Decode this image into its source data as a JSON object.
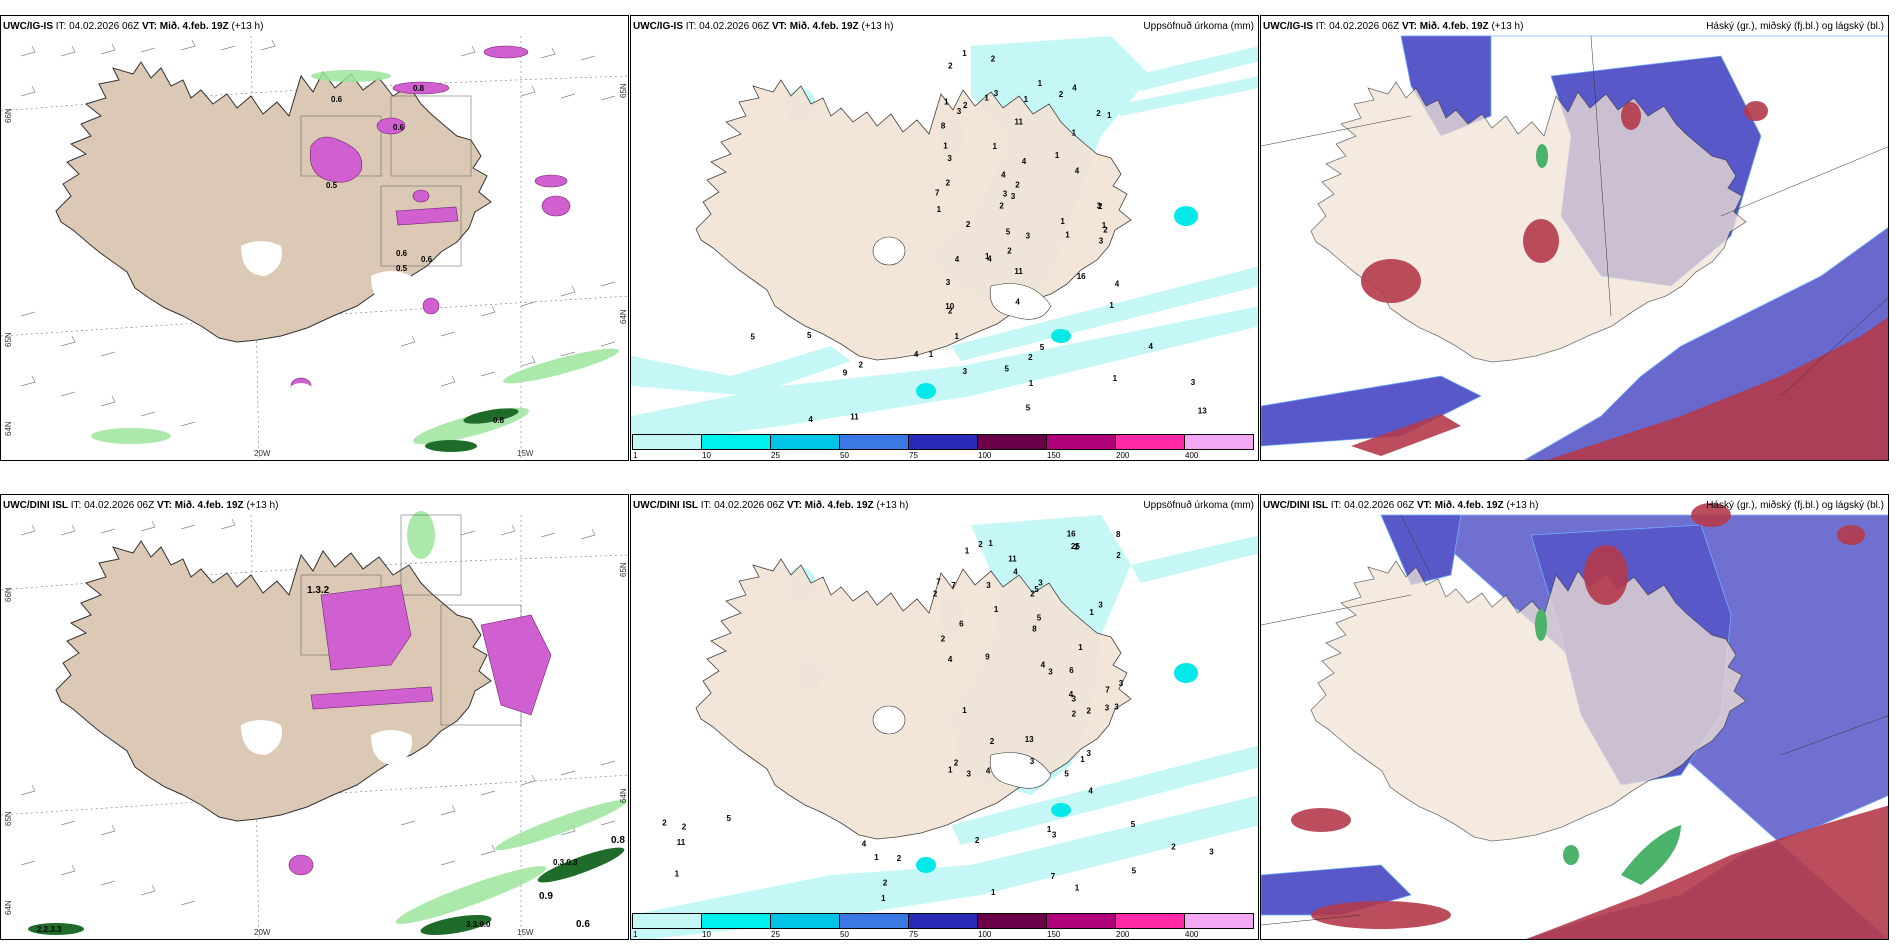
{
  "panels": [
    {
      "id": "ig-wind",
      "model": "UWC/IG-IS",
      "it_label": "IT:",
      "it_value": "04.02.2026 06Z",
      "vt_label": "VT:",
      "vt_value": "Mið. 4.feb. 19Z",
      "lead": "(+13 h)",
      "right_title": "",
      "axis_labels": [
        "66N",
        "65N",
        "64N",
        "20W",
        "15W",
        "65N",
        "64N"
      ],
      "precip_labels": [
        "0.6",
        "0.5",
        "0.6",
        "0.8",
        "0.6",
        "0.5",
        "0.6",
        "0.8"
      ]
    },
    {
      "id": "ig-precip",
      "model": "UWC/IG-IS",
      "it_label": "IT:",
      "it_value": "04.02.2026 06Z",
      "vt_label": "VT:",
      "vt_value": "Mið. 4.feb. 19Z",
      "lead": "(+13 h)",
      "right_title": "Uppsöfnuð úrkoma (mm)",
      "legend_ticks": [
        "1",
        "10",
        "25",
        "50",
        "75",
        "100",
        "150",
        "200",
        "400"
      ],
      "point_values": [
        "1",
        "2",
        "2",
        "1",
        "2",
        "2",
        "1",
        "1",
        "4",
        "3",
        "1",
        "4",
        "3",
        "2",
        "1",
        "1",
        "2",
        "3",
        "2",
        "1",
        "9",
        "11",
        "11",
        "4",
        "16",
        "13",
        "1",
        "1",
        "5",
        "4",
        "2",
        "2",
        "3",
        "4",
        "5",
        "1",
        "2",
        "5",
        "7",
        "4",
        "8",
        "1",
        "4",
        "1",
        "3",
        "4",
        "4",
        "11",
        "2",
        "3",
        "1",
        "1",
        "3",
        "3",
        "1",
        "2",
        "4",
        "3",
        "3",
        "5",
        "10",
        "1",
        "1",
        "3",
        "4",
        "5",
        "2",
        "2",
        "1",
        "2",
        "1",
        "5"
      ]
    },
    {
      "id": "ig-cloud",
      "model": "UWC/IG-IS",
      "it_label": "IT:",
      "it_value": "04.02.2026 06Z",
      "vt_label": "VT:",
      "vt_value": "Mið. 4.feb. 19Z",
      "lead": "(+13 h)",
      "right_title": "Háský (gr.), miðský (fj.bl.) og lágský (bl.)"
    },
    {
      "id": "dini-wind",
      "model": "UWC/DINI ISL",
      "it_label": "IT:",
      "it_value": "04.02.2026 06Z",
      "vt_label": "VT:",
      "vt_value": "Mið. 4.feb. 19Z",
      "lead": "(+13 h)",
      "right_title": "",
      "axis_labels": [
        "66N",
        "65N",
        "64N",
        "20W",
        "15W",
        "65N",
        "64N"
      ],
      "precip_labels": [
        "1.3.2",
        "0.8",
        "0.9",
        "0.6",
        "0.3.0.3",
        "3.3.9.0",
        "2.2.3.3"
      ]
    },
    {
      "id": "dini-precip",
      "model": "UWC/DINI ISL",
      "it_label": "IT:",
      "it_value": "04.02.2026 06Z",
      "vt_label": "VT:",
      "vt_value": "Mið. 4.feb. 19Z",
      "lead": "(+13 h)",
      "right_title": "Uppsöfnuð úrkoma (mm)",
      "legend_ticks": [
        "1",
        "10",
        "25",
        "50",
        "75",
        "100",
        "150",
        "200",
        "400"
      ],
      "point_values": [
        "1",
        "2",
        "2",
        "1",
        "2",
        "1",
        "2",
        "4",
        "1",
        "2",
        "2",
        "4",
        "3",
        "8",
        "11",
        "7",
        "2",
        "3",
        "2",
        "1",
        "3",
        "4",
        "3",
        "2",
        "1",
        "13",
        "5",
        "16",
        "3",
        "5",
        "25",
        "5",
        "11",
        "3",
        "4",
        "6",
        "1",
        "3",
        "7",
        "1",
        "2",
        "5",
        "3",
        "6",
        "3",
        "9",
        "4",
        "1",
        "4",
        "8",
        "2",
        "2",
        "3",
        "3",
        "1",
        "1",
        "1",
        "2",
        "4",
        "5",
        "5",
        "2",
        "7",
        "7",
        "2",
        "1",
        "1",
        "3",
        "2",
        "3"
      ]
    },
    {
      "id": "dini-cloud",
      "model": "UWC/DINI ISL",
      "it_label": "IT:",
      "it_value": "04.02.2026 06Z",
      "vt_label": "VT:",
      "vt_value": "Mið. 4.feb. 19Z",
      "lead": "(+13 h)",
      "right_title": "Háský (gr.), miðský (fj.bl.) og lágský (bl.)"
    }
  ],
  "colors": {
    "land": "#f2e3d5",
    "land_wind": "#dbc9b5",
    "precip_light": "#c6f7f7",
    "precip_cyan": "#00e8e8",
    "low_cloud": "#5858c8",
    "mid_cloud": "#b43a4a",
    "high_cloud": "#4ab26a",
    "green_precip": "#9be69b",
    "magenta": "#d060d0"
  },
  "legend_colors": [
    "#c6f7f7",
    "#00f0f0",
    "#00c4e6",
    "#3a78e6",
    "#2a2ab8",
    "#6a0048",
    "#b0007a",
    "#ff2aa8",
    "#f2a8f2"
  ]
}
